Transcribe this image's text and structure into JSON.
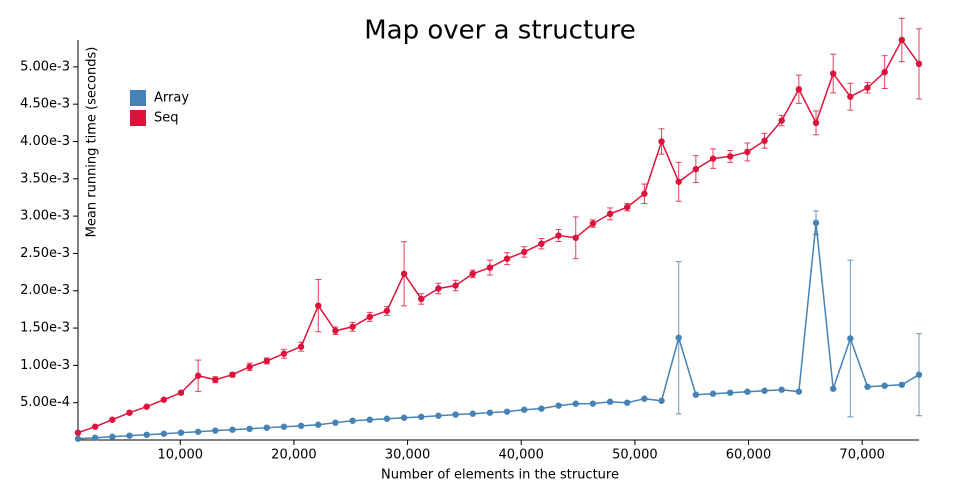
{
  "chart_data": {
    "type": "line",
    "title": "Map over a structure",
    "xlabel": "Number of elements in the structure",
    "ylabel": "Mean running time (seconds)",
    "legend": "upper left",
    "xlim": [
      1000,
      75000
    ],
    "ylim": [
      0,
      0.00536
    ],
    "xticks": [
      {
        "value": 10000,
        "label": "10,000"
      },
      {
        "value": 20000,
        "label": "20,000"
      },
      {
        "value": 30000,
        "label": "30,000"
      },
      {
        "value": 40000,
        "label": "40,000"
      },
      {
        "value": 50000,
        "label": "50,000"
      },
      {
        "value": 60000,
        "label": "60,000"
      },
      {
        "value": 70000,
        "label": "70,000"
      }
    ],
    "yticks": [
      {
        "value": 0.0005,
        "label": "5.00e-4"
      },
      {
        "value": 0.001,
        "label": "1.00e-3"
      },
      {
        "value": 0.0015,
        "label": "1.50e-3"
      },
      {
        "value": 0.002,
        "label": "2.00e-3"
      },
      {
        "value": 0.0025,
        "label": "2.50e-3"
      },
      {
        "value": 0.003,
        "label": "3.00e-3"
      },
      {
        "value": 0.0035,
        "label": "3.50e-3"
      },
      {
        "value": 0.004,
        "label": "4.00e-3"
      },
      {
        "value": 0.0045,
        "label": "4.50e-3"
      },
      {
        "value": 0.005,
        "label": "5.00e-3"
      }
    ],
    "x": [
      1000,
      2510,
      4020,
      5531,
      7041,
      8551,
      10061,
      11571,
      13082,
      14592,
      16102,
      17612,
      19122,
      20633,
      22143,
      23653,
      25163,
      26673,
      28184,
      29694,
      31204,
      32714,
      34224,
      35735,
      37245,
      38755,
      40265,
      41776,
      43286,
      44796,
      46306,
      47816,
      49327,
      50837,
      52347,
      53857,
      55367,
      56878,
      58388,
      59898,
      61408,
      62918,
      64429,
      65939,
      67449,
      68959,
      70469,
      71980,
      73490,
      75000
    ],
    "series": [
      {
        "name": "Array",
        "color": "#4682b4",
        "values": [
          1.7e-05,
          3e-05,
          4.4e-05,
          5.8e-05,
          7e-05,
          8.4e-05,
          9.8e-05,
          0.00011,
          0.000125,
          0.000138,
          0.00015,
          0.000165,
          0.000178,
          0.00019,
          0.000205,
          0.000232,
          0.000258,
          0.000272,
          0.000285,
          0.000298,
          0.00031,
          0.000325,
          0.00034,
          0.000352,
          0.000366,
          0.00038,
          0.000406,
          0.00042,
          0.00046,
          0.000486,
          0.000487,
          0.000513,
          0.0005,
          0.000553,
          0.000526,
          0.00137,
          0.000607,
          0.00062,
          0.000633,
          0.000647,
          0.00066,
          0.000674,
          0.000648,
          0.00291,
          0.000687,
          0.00136,
          0.000714,
          0.000727,
          0.00074,
          0.000875
        ],
        "errors": [
          5e-06,
          5e-06,
          5e-06,
          5e-06,
          5e-06,
          5e-06,
          5e-06,
          5e-06,
          5e-06,
          5e-06,
          5e-06,
          5e-06,
          5e-06,
          5e-06,
          5e-06,
          5e-06,
          5e-06,
          5e-06,
          5e-06,
          5e-06,
          5e-06,
          5e-06,
          5e-06,
          5e-06,
          5e-06,
          5e-06,
          5e-06,
          5e-06,
          5e-06,
          5e-06,
          5e-06,
          5e-06,
          5e-06,
          5e-06,
          5e-06,
          0.00102,
          5e-06,
          5e-06,
          5e-06,
          5e-06,
          5e-06,
          5e-06,
          5e-06,
          0.00016,
          5e-06,
          0.00105,
          5e-06,
          5e-06,
          5e-06,
          0.00055
        ]
      },
      {
        "name": "Seq",
        "color": "#dc143c",
        "values": [
          9.8e-05,
          0.000178,
          0.000272,
          0.000366,
          0.000446,
          0.00054,
          0.000633,
          0.000861,
          0.000808,
          0.000875,
          0.00098,
          0.00106,
          0.001156,
          0.00125,
          0.0018,
          0.001464,
          0.001517,
          0.00165,
          0.00173,
          0.002227,
          0.00189,
          0.00203,
          0.00207,
          0.002227,
          0.00231,
          0.00243,
          0.00252,
          0.00263,
          0.00274,
          0.00271,
          0.0029,
          0.00303,
          0.00312,
          0.0033,
          0.004,
          0.00346,
          0.00363,
          0.00377,
          0.0038,
          0.00386,
          0.00401,
          0.00428,
          0.0047,
          0.00425,
          0.00491,
          0.0046,
          0.00472,
          0.00493,
          0.00536,
          0.00504
        ],
        "errors": [
          1e-05,
          1e-05,
          1e-05,
          1e-05,
          1e-05,
          1e-05,
          2e-05,
          0.00021,
          4e-05,
          3e-05,
          5e-05,
          4e-05,
          6e-05,
          6e-05,
          0.00035,
          5e-05,
          6e-05,
          6e-05,
          6e-05,
          0.00043,
          7e-05,
          7e-05,
          7e-05,
          5e-05,
          0.0001,
          8e-05,
          7e-05,
          7e-05,
          8e-05,
          0.00028,
          5e-05,
          8e-05,
          5e-05,
          0.00013,
          0.00017,
          0.00026,
          0.00018,
          0.00013,
          8e-05,
          0.00012,
          0.0001,
          7e-05,
          0.00019,
          0.00016,
          0.00026,
          0.00018,
          7e-05,
          0.00022,
          0.00029,
          0.00047
        ]
      }
    ]
  }
}
